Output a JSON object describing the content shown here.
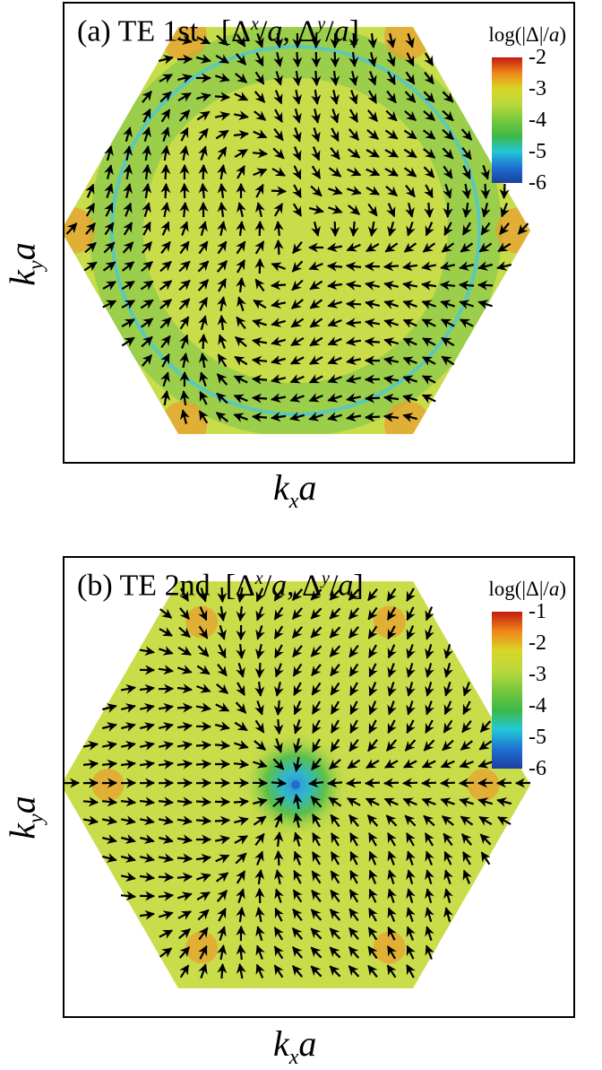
{
  "chart_data": [
    {
      "type": "vector-field",
      "title_parts": {
        "a": "(a) TE 1st",
        "b": "[Δ",
        "c": "x",
        "d": "/",
        "e": "a",
        "f": ", Δ",
        "g": "y",
        "h": "/",
        "i": "a",
        "j": "]"
      },
      "colorbar_title_parts": {
        "a": "log(|Δ|/",
        "b": "a",
        "c": ")"
      },
      "colorbar_ticks": [
        "-2",
        "-3",
        "-4",
        "-5",
        "-6"
      ],
      "colorbar_range": [
        -6,
        -2
      ],
      "colorbar_colors": [
        "#c21a10",
        "#f08a1a",
        "#d8d628",
        "#b8d83c",
        "#78c83c",
        "#3db848",
        "#22c8d8",
        "#1e6fd0",
        "#1b3fa0"
      ],
      "xlabel_parts": {
        "base": "k",
        "sub": "x",
        "tail": "a"
      },
      "ylabel_parts": {
        "base": "k",
        "sub": "y",
        "tail": "a"
      },
      "domain": "hexagonal Brillouin zone",
      "field": "rotating-1st",
      "background_color": "#c9dc4a",
      "ring": true,
      "corner_color": "#e8a030"
    },
    {
      "type": "vector-field",
      "title_parts": {
        "a": "(b) TE 2nd",
        "b": "[Δ",
        "c": "x",
        "d": "/",
        "e": "a",
        "f": ", Δ",
        "g": "y",
        "h": "/",
        "i": "a",
        "j": "]"
      },
      "colorbar_title_parts": {
        "a": "log(|Δ|/",
        "b": "a",
        "c": ")"
      },
      "colorbar_ticks": [
        "-1",
        "-2",
        "-3",
        "-4",
        "-5",
        "-6"
      ],
      "colorbar_range": [
        -6,
        -1
      ],
      "colorbar_colors": [
        "#c21a10",
        "#f08a1a",
        "#d8d628",
        "#b8d83c",
        "#78c83c",
        "#3db848",
        "#22c8d8",
        "#1e6fd0",
        "#1b3fa0"
      ],
      "xlabel_parts": {
        "base": "k",
        "sub": "x",
        "tail": "a"
      },
      "ylabel_parts": {
        "base": "k",
        "sub": "y",
        "tail": "a"
      },
      "domain": "hexagonal Brillouin zone",
      "field": "inflow-2nd",
      "background_color": "#c9dc4a",
      "ring": false,
      "corner_color": "#e8a030"
    }
  ]
}
